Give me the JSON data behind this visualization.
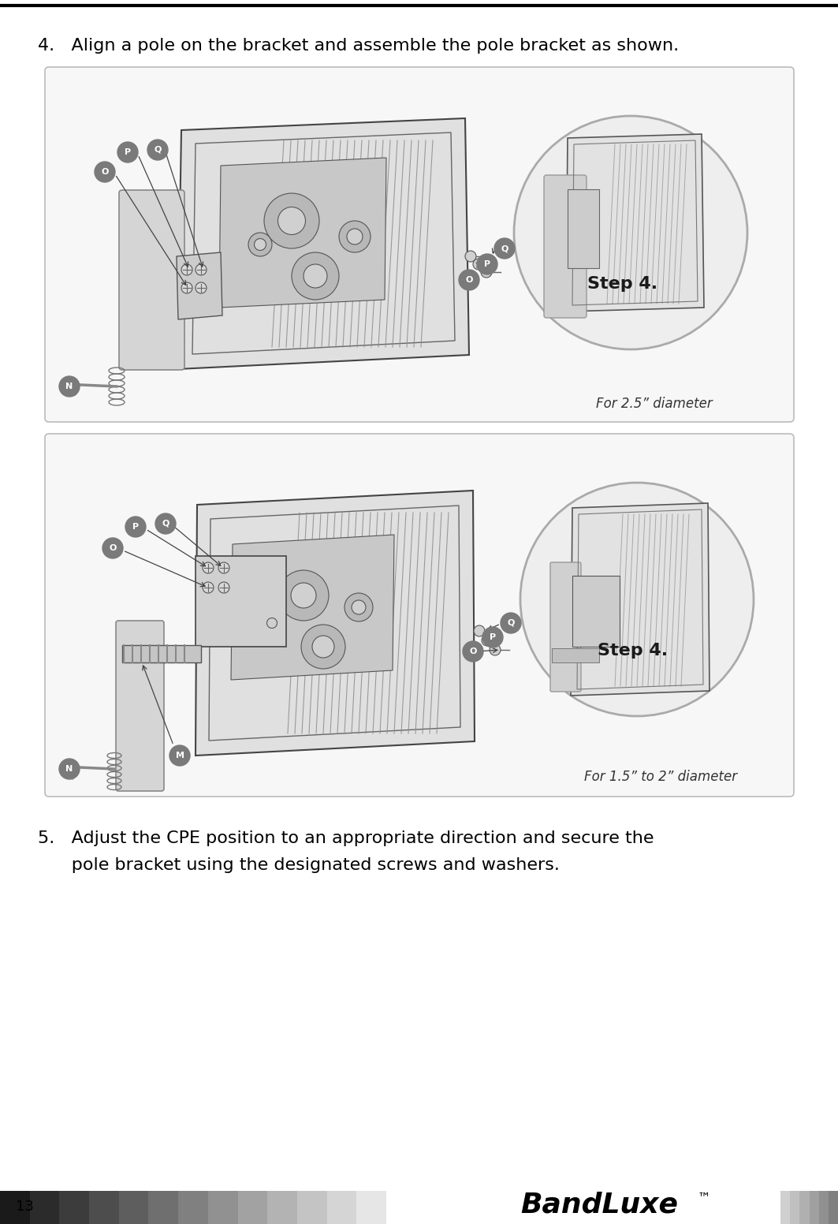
{
  "page_number": "13",
  "background_color": "#ffffff",
  "step4_title": "4.   Align a pole on the bracket and assemble the pole bracket as shown.",
  "step5_line1": "5.   Adjust the CPE position to an appropriate direction and secure the",
  "step5_line2": "      pole bracket using the designated screws and washers.",
  "box1_caption": "For 2.5” diameter",
  "box1_step": "Step 4.",
  "box2_caption": "For 1.5” to 2” diameter",
  "box2_step": "Step 4.",
  "label_bg": "#7a7a7a",
  "label_text_color": "#ffffff",
  "text_color": "#000000",
  "footer_left_colors": [
    "#1a1a1a",
    "#2b2b2b",
    "#3c3c3c",
    "#4d4d4d",
    "#5e5e5e",
    "#6f6f6f",
    "#808080",
    "#919191",
    "#a2a2a2",
    "#b3b3b3",
    "#c4c4c4",
    "#d5d5d5",
    "#e6e6e6"
  ],
  "footer_right_colors": [
    "#d0d0d0",
    "#c0c0c0",
    "#b0b0b0",
    "#a0a0a0",
    "#909090",
    "#808080"
  ],
  "brandluxe_text": "BandLuxe",
  "tm_text": "™",
  "title_fontsize": 16,
  "caption_fontsize": 12,
  "step_fontsize": 16,
  "label_fontsize": 8
}
